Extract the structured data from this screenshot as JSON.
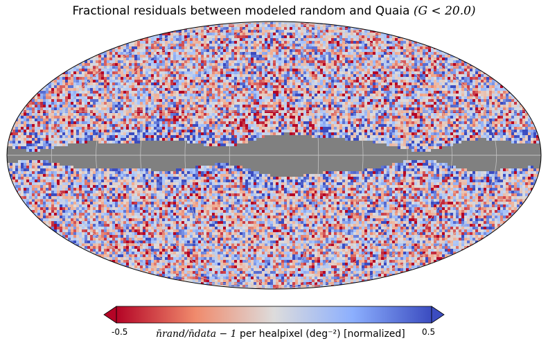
{
  "title": {
    "text": "Fractional residuals between modeled random and Quaia ",
    "math": "(G < 20.0)"
  },
  "colorbar": {
    "label_math": "n̄rand/n̄data − 1",
    "label_text": " per healpixel (deg⁻²) [normalized]",
    "min_label": "-0.5",
    "max_label": "0.5",
    "min": -0.5,
    "max": 0.5,
    "colormap": "coolwarm_r",
    "extend": "both"
  },
  "chart_data": {
    "type": "heatmap",
    "projection": "mollweide",
    "title": "Fractional residuals between modeled random and Quaia (G < 20.0)",
    "value_range": [
      -0.5,
      0.5
    ],
    "masked_region": "galactic plane band",
    "masked_color": "#808080",
    "graticule": true,
    "colors": {
      "low": "#b40426",
      "mid": "#dddcdc",
      "high": "#3b4cc0"
    }
  }
}
